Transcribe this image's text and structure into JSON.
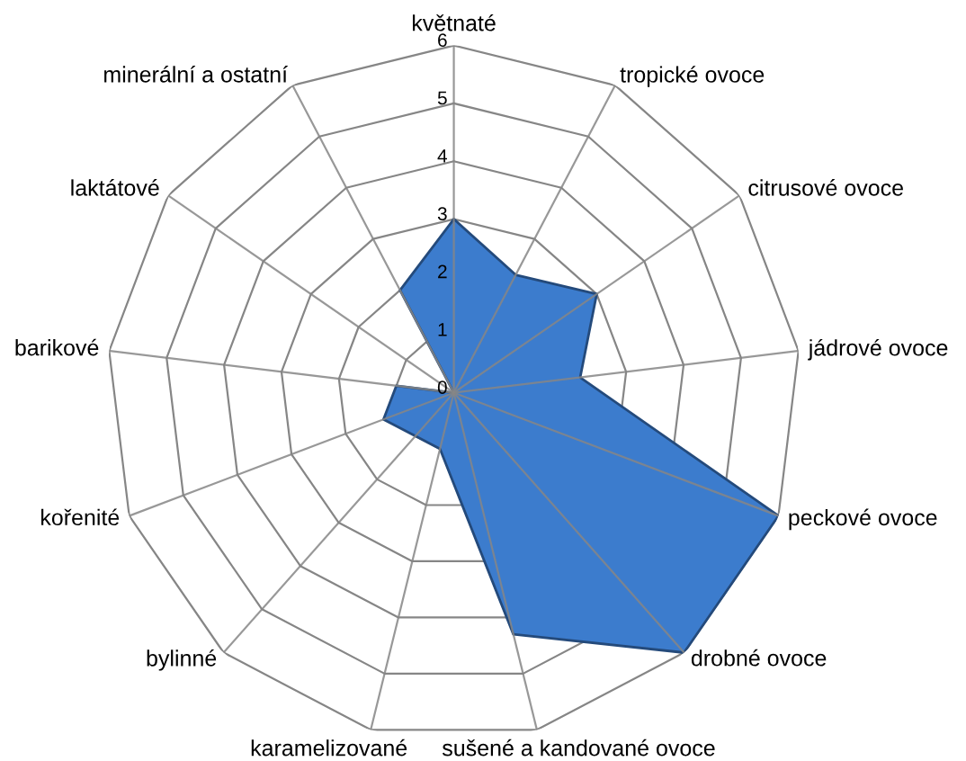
{
  "chart_data": {
    "type": "radar",
    "categories": [
      "květnaté",
      "tropické ovoce",
      "citrusové ovoce",
      "jádrové ovoce",
      "peckové ovoce",
      "drobné ovoce",
      "sušené a kandované ovoce",
      "karamelizované",
      "bylinné",
      "kořenité",
      "barikové",
      "laktátové",
      "minerální a ostatní"
    ],
    "series": [
      {
        "color": "#3c7ccd",
        "values": [
          3,
          2.3,
          3,
          2.2,
          6,
          6,
          4.3,
          1,
          1,
          1.3,
          1,
          0,
          2
        ]
      }
    ],
    "ylim": [
      0,
      6
    ],
    "yticks": [
      0,
      1,
      2,
      3,
      4,
      5,
      6
    ],
    "grid": true
  }
}
